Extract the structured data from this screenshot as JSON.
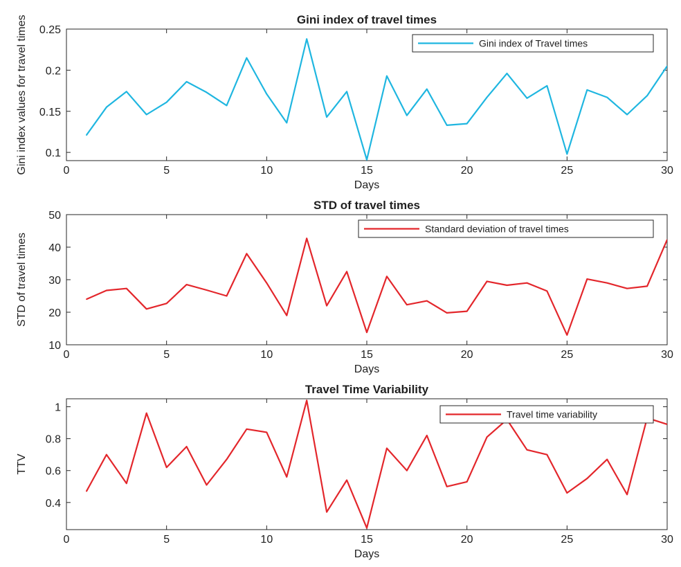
{
  "chart_data": [
    {
      "type": "line",
      "title": "Gini index of travel times",
      "xlabel": "Days",
      "ylabel": "Gini index values for travel times",
      "xlim": [
        0,
        30
      ],
      "ylim": [
        0.09,
        0.25
      ],
      "xticks": [
        "0",
        "5",
        "10",
        "15",
        "20",
        "25",
        "30"
      ],
      "yticks": [
        "0.1",
        "0.15",
        "0.2",
        "0.25"
      ],
      "grid": false,
      "legend": "top-right",
      "series": [
        {
          "name": "Gini index of Travel times",
          "color": "#1fb6e0",
          "x": [
            1,
            2,
            3,
            4,
            5,
            6,
            7,
            8,
            9,
            10,
            11,
            12,
            13,
            14,
            15,
            16,
            17,
            18,
            19,
            20,
            21,
            22,
            23,
            24,
            25,
            26,
            27,
            28,
            29,
            30
          ],
          "y": [
            0.121,
            0.155,
            0.174,
            0.146,
            0.161,
            0.186,
            0.173,
            0.157,
            0.215,
            0.171,
            0.136,
            0.238,
            0.143,
            0.174,
            0.091,
            0.193,
            0.145,
            0.177,
            0.133,
            0.135,
            0.167,
            0.196,
            0.166,
            0.181,
            0.098,
            0.176,
            0.167,
            0.146,
            0.169,
            0.205
          ]
        }
      ]
    },
    {
      "type": "line",
      "title": "STD of travel times",
      "xlabel": "Days",
      "ylabel": "STD of travel times",
      "xlim": [
        0,
        30
      ],
      "ylim": [
        10,
        50
      ],
      "xticks": [
        "0",
        "5",
        "10",
        "15",
        "20",
        "25",
        "30"
      ],
      "yticks": [
        "10",
        "20",
        "30",
        "40",
        "50"
      ],
      "grid": false,
      "legend": "top-right",
      "series": [
        {
          "name": "Standard deviation of travel times",
          "color": "#e3262b",
          "x": [
            1,
            2,
            3,
            4,
            5,
            6,
            7,
            8,
            9,
            10,
            11,
            12,
            13,
            14,
            15,
            16,
            17,
            18,
            19,
            20,
            21,
            22,
            23,
            24,
            25,
            26,
            27,
            28,
            29,
            30
          ],
          "y": [
            24,
            26.7,
            27.3,
            21,
            22.7,
            28.5,
            26.8,
            25,
            38,
            29,
            19,
            42.7,
            22,
            32.5,
            13.8,
            31,
            22.3,
            23.5,
            19.8,
            20.3,
            29.5,
            28.3,
            29,
            26.5,
            13,
            30.2,
            29,
            27.3,
            28,
            42.3
          ]
        }
      ]
    },
    {
      "type": "line",
      "title": "Travel Time Variability",
      "xlabel": "Days",
      "ylabel": "TTV",
      "xlim": [
        0,
        30
      ],
      "ylim": [
        0.23,
        1.05
      ],
      "xticks": [
        "0",
        "5",
        "10",
        "15",
        "20",
        "25",
        "30"
      ],
      "yticks": [
        "0.4",
        "0.6",
        "0.8",
        "1"
      ],
      "grid": false,
      "legend": "top-right",
      "series": [
        {
          "name": "Travel time variability",
          "color": "#e3262b",
          "x": [
            1,
            2,
            3,
            4,
            5,
            6,
            7,
            8,
            9,
            10,
            11,
            12,
            13,
            14,
            15,
            16,
            17,
            18,
            19,
            20,
            21,
            22,
            23,
            24,
            25,
            26,
            27,
            28,
            29,
            30
          ],
          "y": [
            0.47,
            0.7,
            0.52,
            0.96,
            0.62,
            0.75,
            0.51,
            0.67,
            0.86,
            0.84,
            0.56,
            1.04,
            0.34,
            0.54,
            0.24,
            0.74,
            0.6,
            0.82,
            0.5,
            0.53,
            0.81,
            0.92,
            0.73,
            0.7,
            0.46,
            0.55,
            0.67,
            0.45,
            0.93,
            0.89
          ]
        }
      ]
    }
  ]
}
